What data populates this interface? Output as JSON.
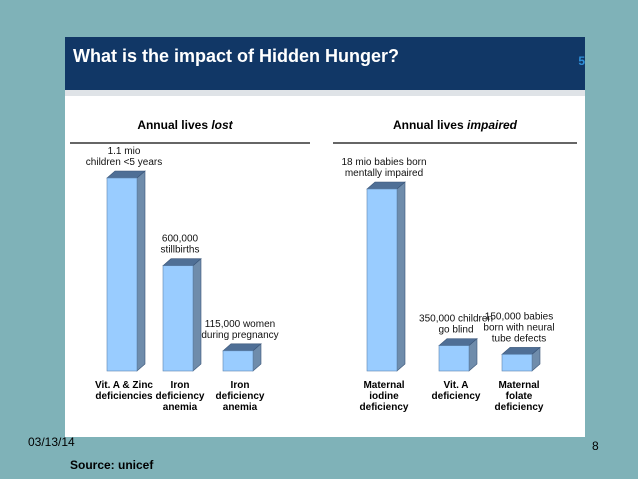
{
  "slide": {
    "title": "What is the impact of Hidden Hunger?",
    "slide_number_top": "5",
    "date": "03/13/14",
    "page_number": "8",
    "source": "Source: unicef"
  },
  "colors": {
    "header": "#113766",
    "bar_front": "#99ccff",
    "bar_side": "#6f8cab",
    "bar_top": "#4f6f96",
    "background": "#7fb2b8"
  },
  "chart_data": [
    {
      "type": "bar",
      "title_pre": "Annual lives ",
      "title_em": "lost",
      "categories": [
        [
          "Vit. A & Zinc",
          "deficiencies"
        ],
        [
          "Iron",
          "deficiency",
          "anemia"
        ],
        [
          "Iron",
          "deficiency",
          "anemia"
        ]
      ],
      "values": [
        1100000,
        600000,
        115000
      ],
      "data_labels": [
        [
          "1.1 mio",
          "children <5 years"
        ],
        [
          "600,000",
          "stillbirths"
        ],
        [
          "115,000 women",
          "during pregnancy"
        ]
      ]
    },
    {
      "type": "bar",
      "title_pre": "Annual lives ",
      "title_em": "impaired",
      "categories": [
        [
          "Maternal",
          "iodine",
          "deficiency"
        ],
        [
          "Vit. A",
          "deficiency"
        ],
        [
          "Maternal",
          "folate",
          "deficiency"
        ]
      ],
      "values": [
        18000000,
        350000,
        150000
      ],
      "data_labels": [
        [
          "18 mio babies born",
          "mentally impaired"
        ],
        [
          "350,000 children",
          "go blind"
        ],
        [
          "150,000 babies",
          "born with neural",
          "tube defects"
        ]
      ]
    }
  ]
}
